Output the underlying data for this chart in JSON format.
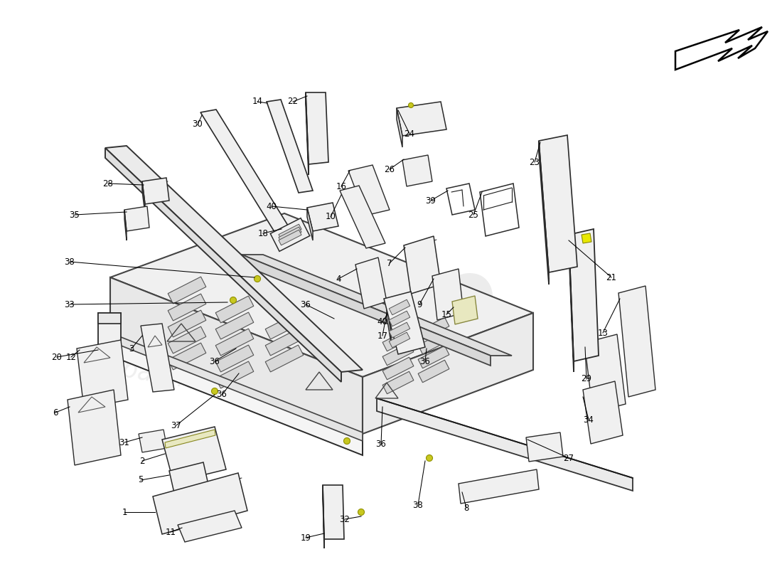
{
  "bg_color": "#ffffff",
  "wm_color1": "#d5d5d5",
  "wm_color2": "#dcdcdc",
  "ec": "#2a2a2a",
  "fc": "#f0f0f0",
  "fc2": "#e8e8e8",
  "lc": "#1a1a1a",
  "lw_main": 1.3,
  "lw_thin": 0.9,
  "label_fs": 8.5,
  "arrow_color": "#000000",
  "yellow_dot": "#c8c820",
  "yellow_dot_ec": "#909000"
}
